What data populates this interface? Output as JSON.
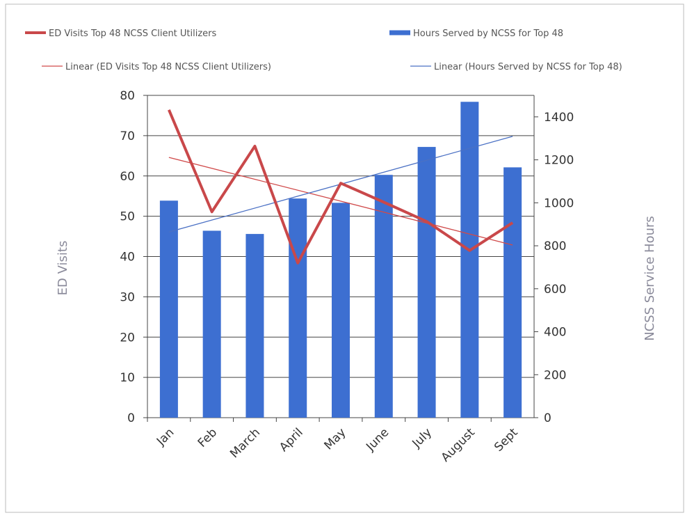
{
  "chart_data": {
    "type": "bar-line",
    "categories": [
      "Jan",
      "Feb",
      "March",
      "April",
      "May",
      "June",
      "July",
      "August",
      "Sept"
    ],
    "series": [
      {
        "name": "ED Visits Top 48 NCSS Client Utilizers",
        "type": "line",
        "color": "#c9484a",
        "values": [
          76.4,
          51.1,
          67.4,
          38.4,
          58.2,
          53.5,
          48.7,
          41.5,
          48.4
        ]
      },
      {
        "name": "Hours Served by NCSS for Top 48",
        "type": "bar",
        "color": "#3d6fd1",
        "axis": "y2",
        "values": [
          1010,
          870,
          855,
          1020,
          1000,
          1130,
          1260,
          1470,
          1165
        ]
      }
    ],
    "trendlines": [
      {
        "name": "Linear (ED Visits Top 48 NCSS Client Utilizers)",
        "series": 0,
        "color": "#d04a4a"
      },
      {
        "name": "Linear (Hours Served by NCSS for Top 48)",
        "series": 1,
        "color": "#4a70c4"
      }
    ],
    "y_label": "ED Visits",
    "y2_label": "NCSS Service Hours",
    "ylim": [
      0,
      80
    ],
    "yticks": [
      0,
      10,
      20,
      30,
      40,
      50,
      60,
      70,
      80
    ],
    "y2lim": [
      0,
      1500
    ],
    "y2ticks": [
      0,
      200,
      400,
      600,
      800,
      1000,
      1200,
      1400
    ],
    "grid": true
  }
}
